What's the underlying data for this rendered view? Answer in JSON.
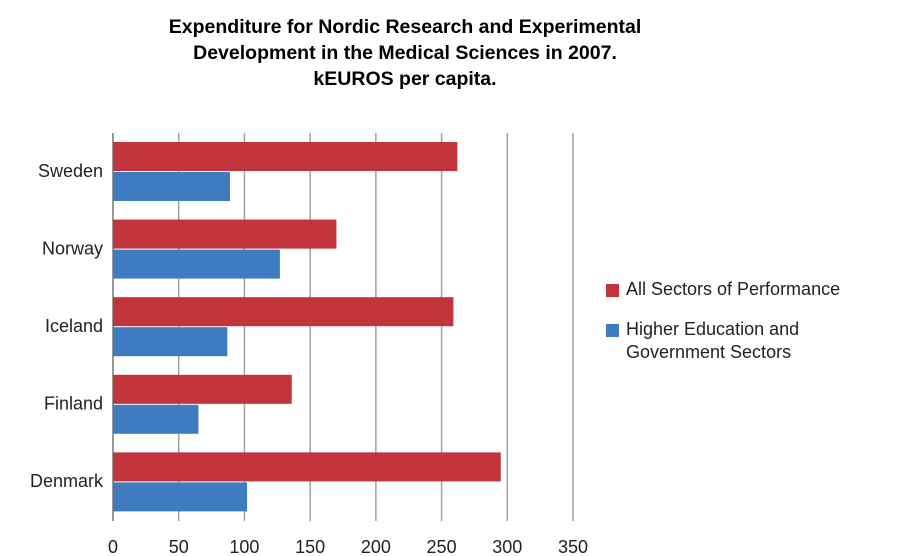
{
  "chart_data": {
    "type": "hbar",
    "title": "Expenditure for Nordic Research and Experimental\nDevelopment in the Medical Sciences in 2007.\nkEUROS per capita.",
    "categories": [
      "Sweden",
      "Norway",
      "Iceland",
      "Finland",
      "Denmark"
    ],
    "series": [
      {
        "name": "All Sectors of Performance",
        "color": "#c1343b",
        "values": [
          262,
          170,
          259,
          136,
          295
        ]
      },
      {
        "name": "Higher Education and\nGovernment Sectors",
        "color": "#3f7cbf",
        "values": [
          89,
          127,
          87,
          65,
          102
        ]
      }
    ],
    "xlim": [
      0,
      350
    ],
    "xticks": [
      0,
      50,
      100,
      150,
      200,
      250,
      300,
      350
    ],
    "grid": true,
    "legend": "right"
  }
}
